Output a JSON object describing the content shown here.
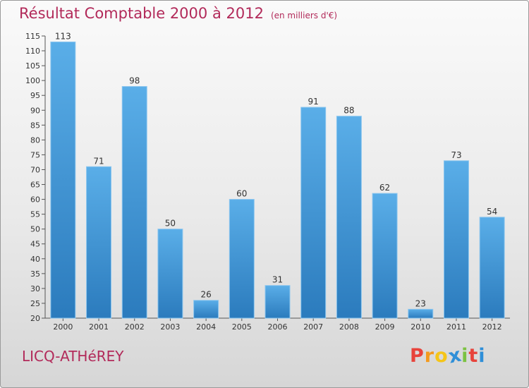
{
  "header": {
    "title": "Résultat Comptable 2000 à 2012",
    "subtitle": "(en milliers d'€)"
  },
  "footer": {
    "city": "LICQ-ATHéREY",
    "logo_letters": [
      "P",
      "r",
      "o",
      "x",
      "i",
      "t",
      "i"
    ]
  },
  "colors": {
    "title": "#b22a5a",
    "bar_top": "#5aaee8",
    "bar_bottom": "#2b7bbd",
    "logo": [
      "#e8433b",
      "#f39a1e",
      "#f5c518",
      "#2f8fd8",
      "#7cc242",
      "#e8433b",
      "#2f8fd8"
    ]
  },
  "chart_data": {
    "type": "bar",
    "title": "Résultat Comptable 2000 à 2012",
    "subtitle": "(en milliers d'€)",
    "xlabel": "",
    "ylabel": "",
    "categories": [
      "2000",
      "2001",
      "2002",
      "2003",
      "2004",
      "2005",
      "2006",
      "2007",
      "2008",
      "2009",
      "2010",
      "2011",
      "2012"
    ],
    "values": [
      113,
      71,
      98,
      50,
      26,
      60,
      31,
      91,
      88,
      62,
      23,
      73,
      54
    ],
    "ylim": [
      20,
      115
    ],
    "yticks": [
      20,
      25,
      30,
      35,
      40,
      45,
      50,
      55,
      60,
      65,
      70,
      75,
      80,
      85,
      90,
      95,
      100,
      105,
      110,
      115
    ],
    "grid": false,
    "legend": "none"
  }
}
